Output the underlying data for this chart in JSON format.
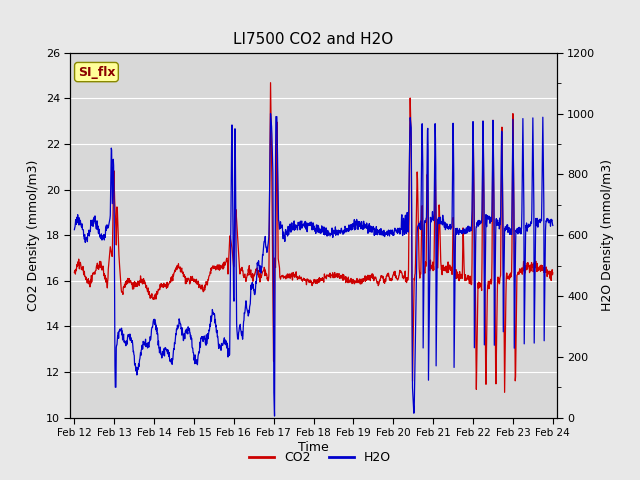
{
  "title": "LI7500 CO2 and H2O",
  "xlabel": "Time",
  "ylabel_left": "CO2 Density (mmol/m3)",
  "ylabel_right": "H2O Density (mmol/m3)",
  "ylim_left": [
    10,
    26
  ],
  "ylim_right": [
    0,
    1200
  ],
  "co2_color": "#cc0000",
  "h2o_color": "#0000cc",
  "fig_facecolor": "#e8e8e8",
  "plot_facecolor": "#d8d8d8",
  "grid_color": "#ffffff",
  "annotation_text": "SI_flx",
  "annotation_fg": "#8b0000",
  "annotation_bg": "#ffff99",
  "annotation_edge": "#888800",
  "legend_co2": "CO2",
  "legend_h2o": "H2O",
  "x_tick_labels": [
    "Feb 12",
    "Feb 13",
    "Feb 14",
    "Feb 15",
    "Feb 16",
    "Feb 17",
    "Feb 18",
    "Feb 19",
    "Feb 20",
    "Feb 21",
    "Feb 22",
    "Feb 23",
    "Feb 24"
  ],
  "x_tick_positions": [
    0,
    1,
    2,
    3,
    4,
    5,
    6,
    7,
    8,
    9,
    10,
    11,
    12
  ],
  "xlim": [
    -0.1,
    12.1
  ],
  "yticks_left": [
    10,
    12,
    14,
    16,
    18,
    20,
    22,
    24,
    26
  ],
  "yticks_right": [
    0,
    200,
    400,
    600,
    800,
    1000,
    1200
  ]
}
